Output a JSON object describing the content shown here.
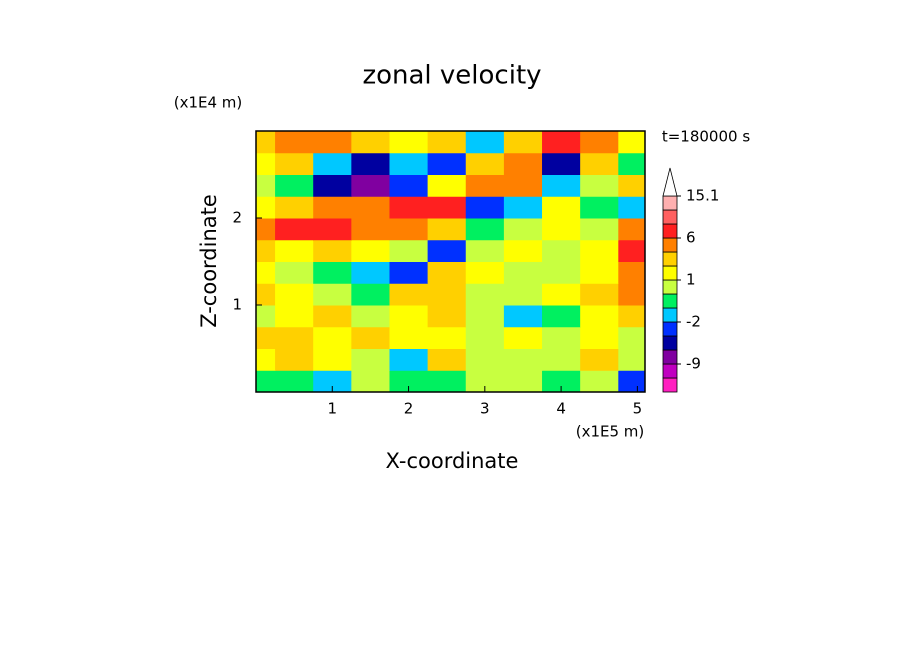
{
  "chart_data": {
    "type": "contour",
    "title": "zonal velocity",
    "x_label": "X-coordinate",
    "y_label": "Z-coordinate",
    "x_unit": "(x1E5 m)",
    "y_unit": "(x1E4 m)",
    "annotation": "t=180000 s",
    "xlim": [
      0,
      5.1
    ],
    "ylim": [
      0,
      3
    ],
    "xticks": [
      1,
      2,
      3,
      4,
      5
    ],
    "yticks": [
      1,
      2
    ],
    "x": [
      0,
      0.5,
      1,
      1.5,
      2,
      2.5,
      3,
      3.5,
      4,
      4.5,
      5
    ],
    "y": [
      0.125,
      0.375,
      0.625,
      0.875,
      1.125,
      1.375,
      1.625,
      1.875,
      2.125,
      2.375,
      2.625,
      2.875
    ],
    "z": [
      [
        -1,
        -1,
        -2,
        0,
        -1,
        -1,
        0,
        0,
        -1,
        0,
        -3
      ],
      [
        1,
        2,
        1,
        0,
        -2,
        2,
        0,
        0,
        0,
        2,
        0
      ],
      [
        2,
        2,
        1,
        2,
        1,
        1,
        0,
        1,
        0,
        1,
        0
      ],
      [
        0,
        1,
        2,
        0,
        1,
        2,
        0,
        -2,
        -1,
        1,
        2
      ],
      [
        2,
        1,
        0,
        -1,
        2,
        2,
        0,
        0,
        1,
        2,
        3
      ],
      [
        1,
        0,
        -1,
        -2,
        -3,
        2,
        1,
        0,
        0,
        1,
        3
      ],
      [
        2,
        1,
        2,
        1,
        0,
        -3,
        0,
        1,
        0,
        1,
        6
      ],
      [
        3,
        6,
        6,
        3,
        3,
        2,
        -1,
        0,
        1,
        0,
        3
      ],
      [
        1,
        2,
        3,
        3,
        6,
        6,
        -3,
        -2,
        1,
        -1,
        -2
      ],
      [
        0,
        -1,
        -6,
        -9,
        -3,
        1,
        3,
        3,
        -2,
        0,
        2
      ],
      [
        1,
        2,
        -2,
        -6,
        -2,
        -3,
        2,
        3,
        -6,
        2,
        -1
      ],
      [
        2,
        3,
        3,
        2,
        1,
        2,
        -2,
        2,
        6,
        3,
        1
      ]
    ],
    "levels": [
      -15,
      -12,
      -9,
      -6,
      -3,
      -2,
      -1,
      0,
      1,
      2,
      3,
      6,
      9,
      12,
      15.1
    ],
    "colors": [
      "#ff20c0",
      "#c000c0",
      "#8000a0",
      "#0000a0",
      "#0030ff",
      "#00c8ff",
      "#00f060",
      "#c8ff40",
      "#ffff00",
      "#ffd000",
      "#ff8000",
      "#ff2020",
      "#ff6060",
      "#ffb0b0"
    ],
    "colorbar_ticks": [
      15.1,
      6,
      1,
      -2,
      -9
    ]
  }
}
